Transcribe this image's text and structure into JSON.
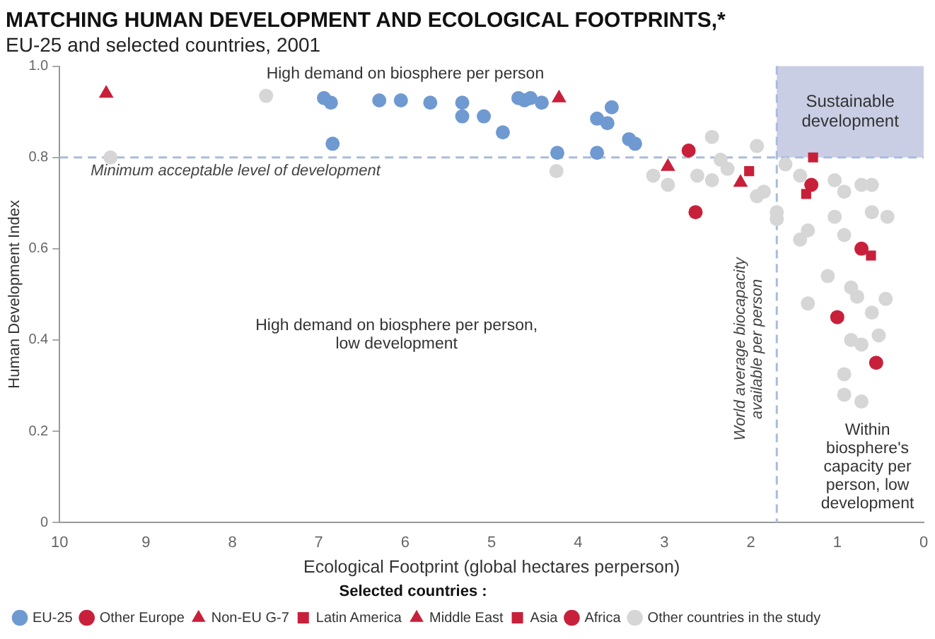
{
  "chart_data": {
    "type": "scatter",
    "title": "MATCHING HUMAN DEVELOPMENT AND ECOLOGICAL FOOTPRINTS,*",
    "subtitle": "EU-25 and selected countries, 2001",
    "xlabel": "Ecological Footprint (global hectares perperson)",
    "ylabel": "Human Development Index",
    "legend_title": "Selected countries :",
    "legend": "bottom",
    "grid": false,
    "xlim": [
      10,
      0
    ],
    "xticks": [
      10,
      9,
      8,
      7,
      6,
      5,
      4,
      3,
      2,
      1,
      0
    ],
    "ylim": [
      0,
      1
    ],
    "yticks": [
      0,
      0.2,
      0.4,
      0.6,
      0.8,
      {
        "value": 1,
        "label": "1.0"
      }
    ],
    "ref_lines": [
      {
        "axis": "y",
        "value": 0.8,
        "label": "Minimum acceptable level of development",
        "color": "#a9bcdc",
        "line_style": "dashed"
      },
      {
        "axis": "x",
        "value": 1.7,
        "label": "World average biocapacity available per person",
        "color": "#a9bcdc",
        "line_style": "dashed"
      }
    ],
    "bands": [
      {
        "axis": "x",
        "from": 1.7,
        "to": 0,
        "label": "Sustainable development",
        "color": "#c9cee5"
      }
    ],
    "annotations": [
      "High demand on biosphere per person",
      "High demand on biosphere per person, low development",
      "Within biosphere's capacity per person, low development"
    ],
    "series": [
      {
        "name": "EU-25",
        "color": "#6f99d1",
        "marker": "circle",
        "x": [
          6.94,
          6.86,
          6.3,
          6.05,
          5.71,
          5.34,
          5.34,
          5.09,
          4.87,
          4.69,
          4.62,
          4.55,
          4.42,
          6.84,
          4.24,
          3.78,
          3.66,
          3.61,
          3.78,
          3.41,
          3.34
        ],
        "values": [
          0.93,
          0.92,
          0.925,
          0.925,
          0.92,
          0.92,
          0.89,
          0.89,
          0.855,
          0.93,
          0.925,
          0.93,
          0.92,
          0.83,
          0.81,
          0.885,
          0.875,
          0.91,
          0.81,
          0.84,
          0.83
        ]
      },
      {
        "name": "Other Europe",
        "color": "#c8203a",
        "marker": "circle",
        "x": [
          2.72
        ],
        "values": [
          0.815
        ]
      },
      {
        "name": "Non-EU G-7",
        "color": "#c8203a",
        "marker": "triangle",
        "x": [
          9.46,
          4.22
        ],
        "values": [
          0.94,
          0.93
        ]
      },
      {
        "name": "Latin America",
        "color": "#c8203a",
        "marker": "square",
        "x": [
          2.02,
          1.28
        ],
        "values": [
          0.77,
          0.8
        ]
      },
      {
        "name": "Middle East",
        "color": "#c8203a",
        "marker": "triangle",
        "x": [
          2.96,
          2.12
        ],
        "values": [
          0.78,
          0.745
        ]
      },
      {
        "name": "Asia",
        "color": "#c8203a",
        "marker": "square",
        "x": [
          1.36,
          0.61
        ],
        "values": [
          0.72,
          0.585
        ]
      },
      {
        "name": "Africa",
        "color": "#c8203a",
        "marker": "circle",
        "x": [
          2.64,
          1.3,
          0.72,
          1.0,
          0.55
        ],
        "values": [
          0.68,
          0.74,
          0.6,
          0.45,
          0.35
        ]
      },
      {
        "name": "Other countries in the study",
        "color": "#d6d6d6",
        "marker": "circle",
        "x": [
          7.61,
          9.41,
          4.25,
          2.45,
          1.93,
          3.13,
          2.96,
          2.62,
          2.45,
          2.35,
          2.27,
          1.93,
          1.85,
          1.7,
          1.7,
          1.6,
          1.43,
          1.03,
          0.92,
          0.72,
          0.6,
          1.03,
          0.6,
          0.42,
          1.43,
          1.34,
          0.92,
          1.11,
          0.84,
          0.77,
          0.44,
          1.34,
          0.6,
          0.52,
          0.84,
          0.72,
          0.92,
          0.92,
          0.72
        ],
        "values": [
          0.935,
          0.8,
          0.77,
          0.845,
          0.825,
          0.76,
          0.74,
          0.76,
          0.75,
          0.795,
          0.775,
          0.715,
          0.725,
          0.68,
          0.665,
          0.785,
          0.76,
          0.75,
          0.725,
          0.74,
          0.74,
          0.67,
          0.68,
          0.67,
          0.62,
          0.64,
          0.63,
          0.54,
          0.515,
          0.495,
          0.49,
          0.48,
          0.46,
          0.41,
          0.4,
          0.39,
          0.325,
          0.28,
          0.265
        ]
      }
    ]
  }
}
